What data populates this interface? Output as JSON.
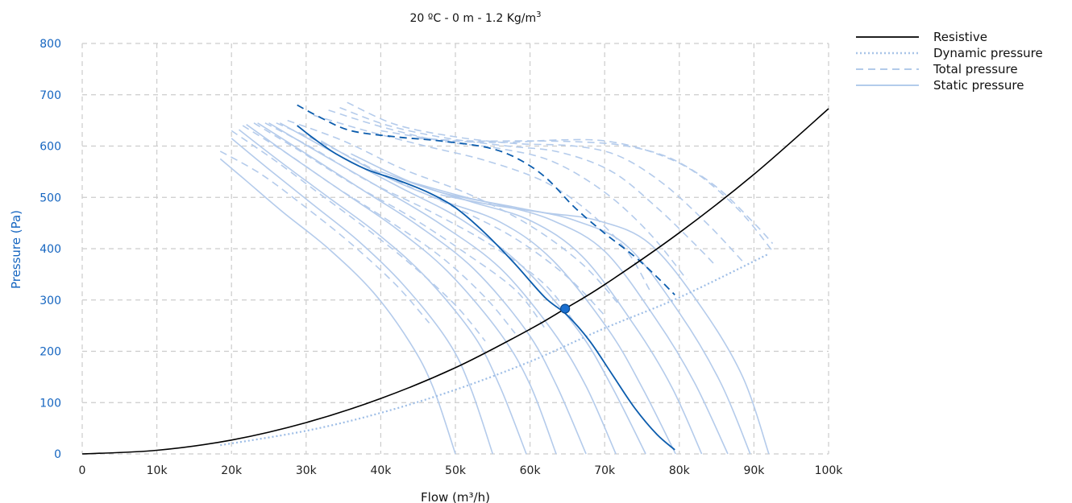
{
  "chart_data": {
    "type": "line",
    "title_main": "20 ºC - 0 m - 1.2 Kg/m",
    "title_sup": "3",
    "xlabel": "Flow (m³/h)",
    "ylabel": "Pressure (Pa)",
    "xlim": [
      0,
      100000
    ],
    "ylim": [
      0,
      800
    ],
    "x_ticks": [
      0,
      10000,
      20000,
      30000,
      40000,
      50000,
      60000,
      70000,
      80000,
      90000,
      100000
    ],
    "x_tick_labels": [
      "0",
      "10k",
      "20k",
      "30k",
      "40k",
      "50k",
      "60k",
      "70k",
      "80k",
      "90k",
      "100k"
    ],
    "y_ticks": [
      0,
      100,
      200,
      300,
      400,
      500,
      600,
      700,
      800
    ],
    "y_tick_labels": [
      "0",
      "100",
      "200",
      "300",
      "400",
      "500",
      "600",
      "700",
      "800"
    ],
    "grid": true,
    "legend_position": "top-right",
    "legend": [
      {
        "label": "Resistive",
        "style": "solid",
        "color": "#000000"
      },
      {
        "label": "Dynamic pressure",
        "style": "dotted",
        "color": "#a8c4e8"
      },
      {
        "label": "Total pressure",
        "style": "dashed",
        "color": "#a8c4e8"
      },
      {
        "label": "Static pressure",
        "style": "solid",
        "color": "#a8c4e8"
      }
    ],
    "colors": {
      "highlight": "#0b5cad",
      "family": "#b4cbeb",
      "resistive": "#000000",
      "axis_text": "#1565c0"
    },
    "resistive_curve": {
      "x": [
        0,
        10000,
        20000,
        30000,
        40000,
        50000,
        60000,
        64700,
        70000,
        80000,
        90000,
        100000
      ],
      "y": [
        0,
        7,
        27,
        61,
        108,
        168,
        243,
        283,
        330,
        431,
        545,
        673
      ]
    },
    "dynamic_pressure_curve": {
      "x": [
        18500,
        30000,
        40000,
        50000,
        60000,
        70000,
        80000,
        92000
      ],
      "y": [
        17,
        45,
        80,
        125,
        180,
        245,
        305,
        390
      ]
    },
    "operating_point": {
      "x": 64700,
      "y": 283
    },
    "selected_static": {
      "x": [
        28800,
        31000,
        34000,
        38000,
        42000,
        46000,
        50000,
        54000,
        58000,
        62000,
        65000,
        68000,
        71000,
        74000,
        77000,
        79400
      ],
      "y": [
        640,
        615,
        585,
        555,
        535,
        512,
        480,
        430,
        370,
        305,
        270,
        220,
        155,
        90,
        38,
        8
      ]
    },
    "selected_total": {
      "x": [
        28800,
        32000,
        36000,
        42000,
        48000,
        54000,
        58000,
        62000,
        66000,
        70000,
        74000,
        77000,
        79400
      ],
      "y": [
        680,
        655,
        630,
        618,
        610,
        598,
        578,
        540,
        480,
        430,
        385,
        345,
        310
      ]
    },
    "static_family": [
      {
        "x": [
          18500,
          22000,
          27000,
          33000,
          39000,
          44000,
          47000,
          50000
        ],
        "y": [
          575,
          532,
          470,
          400,
          315,
          215,
          130,
          0
        ]
      },
      {
        "x": [
          20000,
          25000,
          31000,
          37000,
          43000,
          49000,
          52000,
          55000
        ],
        "y": [
          615,
          555,
          485,
          415,
          330,
          220,
          130,
          0
        ]
      },
      {
        "x": [
          21000,
          26500,
          33000,
          39500,
          46000,
          52500,
          56000,
          59500
        ],
        "y": [
          632,
          570,
          500,
          430,
          345,
          230,
          130,
          0
        ]
      },
      {
        "x": [
          22000,
          28000,
          35000,
          42000,
          49000,
          56000,
          60000,
          63500
        ],
        "y": [
          642,
          580,
          510,
          440,
          355,
          235,
          135,
          0
        ]
      },
      {
        "x": [
          23500,
          30000,
          37500,
          45000,
          52500,
          59500,
          63500,
          67500
        ],
        "y": [
          645,
          585,
          515,
          445,
          360,
          240,
          135,
          0
        ]
      },
      {
        "x": [
          25000,
          32000,
          40000,
          48000,
          56000,
          63000,
          67500,
          71500
        ],
        "y": [
          645,
          585,
          518,
          448,
          362,
          240,
          132,
          0
        ]
      },
      {
        "x": [
          26500,
          34000,
          42500,
          51000,
          59000,
          66500,
          71000,
          75500
        ],
        "y": [
          645,
          585,
          520,
          455,
          365,
          240,
          130,
          0
        ]
      },
      {
        "x": [
          32000,
          40000,
          48000,
          56000,
          63000,
          70500,
          75000,
          79500
        ],
        "y": [
          610,
          545,
          495,
          452,
          378,
          242,
          130,
          0
        ]
      },
      {
        "x": [
          36000,
          44000,
          52000,
          60000,
          67000,
          74000,
          79000,
          83000
        ],
        "y": [
          585,
          530,
          492,
          455,
          385,
          250,
          130,
          0
        ]
      },
      {
        "x": [
          40000,
          48000,
          56000,
          63000,
          70000,
          77000,
          82000,
          86500
        ],
        "y": [
          550,
          510,
          485,
          455,
          395,
          260,
          140,
          0
        ]
      },
      {
        "x": [
          44000,
          52000,
          59000,
          66000,
          73000,
          80000,
          85500,
          89500
        ],
        "y": [
          530,
          498,
          478,
          455,
          405,
          275,
          140,
          0
        ]
      },
      {
        "x": [
          48000,
          55000,
          62000,
          69000,
          76000,
          83000,
          88500,
          92000
        ],
        "y": [
          505,
          485,
          470,
          455,
          410,
          285,
          150,
          0
        ]
      }
    ],
    "total_family": [
      {
        "x": [
          18500,
          24000,
          30000,
          36000,
          42000,
          46500
        ],
        "y": [
          590,
          545,
          480,
          410,
          330,
          255
        ]
      },
      {
        "x": [
          20000,
          26000,
          32000,
          38000,
          44000,
          50000,
          54000
        ],
        "y": [
          630,
          570,
          505,
          440,
          370,
          290,
          220
        ]
      },
      {
        "x": [
          21500,
          27500,
          34000,
          41000,
          48000,
          54000,
          58000
        ],
        "y": [
          640,
          585,
          520,
          455,
          385,
          305,
          235
        ]
      },
      {
        "x": [
          23000,
          29000,
          36000,
          44000,
          51000,
          58000,
          62000
        ],
        "y": [
          645,
          592,
          528,
          462,
          395,
          320,
          245
        ]
      },
      {
        "x": [
          24500,
          31000,
          38500,
          47000,
          55000,
          62000,
          66000
        ],
        "y": [
          645,
          595,
          530,
          470,
          405,
          330,
          255
        ]
      },
      {
        "x": [
          26000,
          33000,
          41000,
          50000,
          58000,
          65000,
          70000
        ],
        "y": [
          645,
          600,
          540,
          480,
          420,
          345,
          270
        ]
      },
      {
        "x": [
          27500,
          35000,
          43000,
          52000,
          60000,
          67000,
          72000
        ],
        "y": [
          650,
          610,
          555,
          505,
          445,
          370,
          290
        ]
      },
      {
        "x": [
          31000,
          38000,
          46000,
          54000,
          62000,
          68000,
          73000,
          76000
        ],
        "y": [
          660,
          630,
          600,
          572,
          530,
          470,
          395,
          320
        ]
      },
      {
        "x": [
          33000,
          40000,
          48000,
          56000,
          63000,
          70000,
          76000,
          81000
        ],
        "y": [
          670,
          638,
          610,
          595,
          570,
          510,
          430,
          340
        ]
      },
      {
        "x": [
          34500,
          41000,
          49000,
          57000,
          64000,
          71000,
          77000,
          82000,
          85000
        ],
        "y": [
          675,
          640,
          615,
          600,
          588,
          550,
          480,
          410,
          365
        ]
      },
      {
        "x": [
          35500,
          42000,
          50000,
          58000,
          66000,
          72000,
          78000,
          84000,
          88500
        ],
        "y": [
          685,
          642,
          618,
          605,
          600,
          580,
          525,
          445,
          375
        ]
      },
      {
        "x": [
          40000,
          48000,
          56000,
          64000,
          70000,
          76000,
          82000,
          88000,
          92500
        ],
        "y": [
          630,
          612,
          607,
          612,
          610,
          590,
          550,
          475,
          395
        ]
      },
      {
        "x": [
          45000,
          52000,
          60000,
          67000,
          73000,
          79000,
          85000,
          90000,
          92500
        ],
        "y": [
          615,
          610,
          610,
          608,
          600,
          575,
          520,
          450,
          410
        ]
      }
    ]
  }
}
